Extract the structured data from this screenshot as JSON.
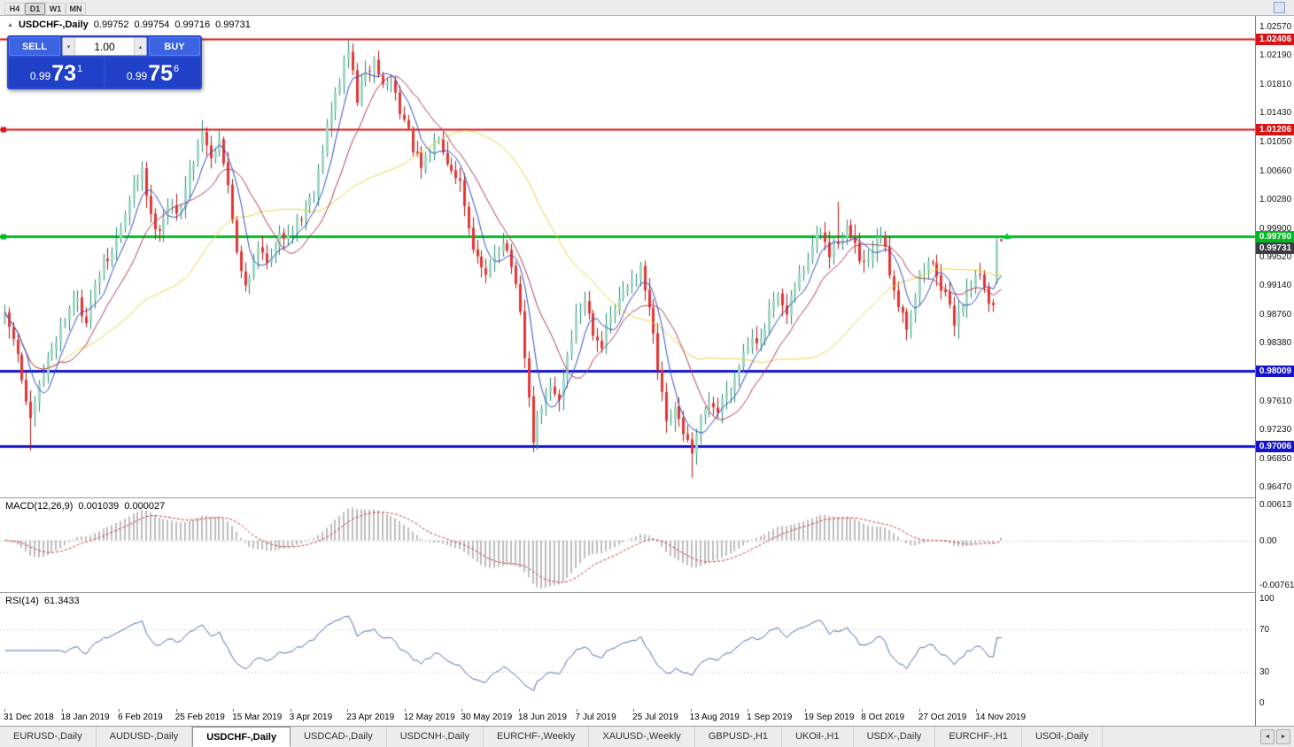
{
  "window": {
    "timeframes": [
      "H4",
      "D1",
      "W1",
      "MN"
    ],
    "active_timeframe": "D1"
  },
  "icons": {
    "collapse": "▲",
    "volume_down": "▾",
    "volume_up": "▴",
    "tab_scroll_left": "◄",
    "tab_scroll_right": "►"
  },
  "chart": {
    "symbol_title": "USDCHF-,Daily",
    "ohlc": {
      "open": "0.99752",
      "high": "0.99754",
      "low": "0.99716",
      "close": "0.99731"
    }
  },
  "trade_panel": {
    "sell_label": "SELL",
    "buy_label": "BUY",
    "volume": "1.00",
    "sell_price": {
      "small": "0.99",
      "big": "73",
      "sup": "1"
    },
    "buy_price": {
      "small": "0.99",
      "big": "75",
      "sup": "6"
    }
  },
  "price_axis": {
    "ticks": [
      "1.02570",
      "1.02190",
      "1.01810",
      "1.01430",
      "1.01050",
      "1.00660",
      "1.00280",
      "0.99900",
      "0.99520",
      "0.99140",
      "0.98760",
      "0.98380",
      "0.98000",
      "0.97610",
      "0.97230",
      "0.96850",
      "0.96470"
    ],
    "levels": [
      {
        "label": "1.02406",
        "value": 1.02406,
        "color": "#d61414",
        "kind": "resistance-line",
        "width": 2
      },
      {
        "label": "1.01206",
        "value": 1.01206,
        "color": "#d61414",
        "kind": "resistance-line",
        "width": 2,
        "handle": true
      },
      {
        "label": "0.99790",
        "value": 0.9979,
        "color": "#00b822",
        "kind": "alert-line",
        "width": 3,
        "handle": true
      },
      {
        "label": "0.99731",
        "value": 0.99731,
        "color": "#3c3c48",
        "kind": "last-price",
        "offset": 8
      },
      {
        "label": "0.98009",
        "value": 0.98009,
        "color": "#1414cc",
        "kind": "support-line",
        "width": 3
      },
      {
        "label": "0.97006",
        "value": 0.97006,
        "color": "#1414cc",
        "kind": "support-line",
        "width": 3
      }
    ]
  },
  "macd_panel": {
    "name": "MACD(12,26,9)",
    "main_value": "0.001039",
    "signal_value": "0.000027",
    "axis_ticks": [
      "0.00613",
      "0.00",
      "-0.00761"
    ],
    "range": {
      "max": 0.00613,
      "min": -0.00761
    }
  },
  "rsi_panel": {
    "name": "RSI(14)",
    "value": "61.3433",
    "axis_ticks": [
      "100",
      "70",
      "30",
      "0"
    ],
    "levels": [
      70,
      30
    ]
  },
  "x_axis": {
    "dates": [
      "31 Dec 2018",
      "18 Jan 2019",
      "6 Feb 2019",
      "25 Feb 2019",
      "15 Mar 2019",
      "3 Apr 2019",
      "23 Apr 2019",
      "12 May 2019",
      "30 May 2019",
      "18 Jun 2019",
      "7 Jul 2019",
      "25 Jul 2019",
      "13 Aug 2019",
      "1 Sep 2019",
      "19 Sep 2019",
      "8 Oct 2019",
      "27 Oct 2019",
      "14 Nov 2019"
    ]
  },
  "tabs": {
    "items": [
      "EURUSD-,Daily",
      "AUDUSD-,Daily",
      "USDCHF-,Daily",
      "USDCAD-,Daily",
      "USDCNH-,Daily",
      "EURCHF-,Weekly",
      "XAUUSD-,Weekly",
      "GBPUSD-,H1",
      "UKOil-,H1",
      "USDX-,Daily",
      "EURCHF-,H1",
      "USOil-,Daily"
    ],
    "active_index": 2
  },
  "chart_data": {
    "type": "candlestick",
    "symbol": "USDCHF",
    "timeframe": "Daily",
    "y_range": {
      "max": 1.0264,
      "min": 0.964
    },
    "num_candles": 233,
    "last_bar": {
      "open": 0.99752,
      "high": 0.99754,
      "low": 0.99716,
      "close": 0.99731
    },
    "horizontal_levels": [
      1.02406,
      1.01206,
      0.9979,
      0.98009,
      0.97006
    ],
    "marker_price": 0.9979,
    "indicators": {
      "macd": [
        12,
        26,
        9
      ],
      "rsi": 14
    },
    "moving_averages": [
      {
        "period": 40,
        "color": "#e8d23e"
      },
      {
        "period": 14,
        "color": "#b23a52"
      },
      {
        "period": 6,
        "color": "#2f4cc4"
      }
    ],
    "colors": {
      "bull_fill": "#9fd6c3",
      "bull_border": "#1f8a70",
      "bear_fill": "#e33434",
      "bear_border": "#b51616",
      "macd_bar": "#bdbdbd",
      "macd_signal": "#cc3333",
      "rsi_line": "#4a6ea8",
      "marker": "#00c832",
      "panel_blue": "#2a4ad0"
    },
    "anchors": [
      [
        0,
        0.987
      ],
      [
        2,
        0.9845
      ],
      [
        4,
        0.979
      ],
      [
        6,
        0.973
      ],
      [
        8,
        0.9778
      ],
      [
        11,
        0.9832
      ],
      [
        13,
        0.9858
      ],
      [
        16,
        0.9898
      ],
      [
        19,
        0.9872
      ],
      [
        22,
        0.993
      ],
      [
        25,
        0.9958
      ],
      [
        27,
        0.999
      ],
      [
        30,
        1.0042
      ],
      [
        32,
        1.0072
      ],
      [
        34,
        1.0002
      ],
      [
        36,
        0.9992
      ],
      [
        38,
        1.0022
      ],
      [
        40,
        1.0006
      ],
      [
        43,
        1.0062
      ],
      [
        46,
        1.0122
      ],
      [
        48,
        1.0082
      ],
      [
        50,
        1.0114
      ],
      [
        52,
        1.0042
      ],
      [
        54,
        0.9962
      ],
      [
        56,
        0.9916
      ],
      [
        59,
        0.9962
      ],
      [
        62,
        0.9948
      ],
      [
        64,
        0.9976
      ],
      [
        66,
        0.9986
      ],
      [
        69,
        1.0006
      ],
      [
        72,
        1.0042
      ],
      [
        75,
        1.0122
      ],
      [
        78,
        1.0186
      ],
      [
        80,
        1.0226
      ],
      [
        82,
        1.0162
      ],
      [
        84,
        1.0192
      ],
      [
        86,
        1.0212
      ],
      [
        88,
        1.0178
      ],
      [
        90,
        1.0186
      ],
      [
        93,
        1.0132
      ],
      [
        95,
        1.0096
      ],
      [
        97,
        1.0066
      ],
      [
        99,
        1.0092
      ],
      [
        101,
        1.0116
      ],
      [
        103,
        1.0082
      ],
      [
        106,
        1.0052
      ],
      [
        108,
        0.9992
      ],
      [
        110,
        0.9946
      ],
      [
        112,
        0.9922
      ],
      [
        114,
        0.9956
      ],
      [
        116,
        0.9976
      ],
      [
        118,
        0.9942
      ],
      [
        120,
        0.9872
      ],
      [
        122,
        0.9762
      ],
      [
        123,
        0.9712
      ],
      [
        125,
        0.9756
      ],
      [
        127,
        0.9776
      ],
      [
        129,
        0.9762
      ],
      [
        131,
        0.9822
      ],
      [
        133,
        0.9872
      ],
      [
        135,
        0.9896
      ],
      [
        137,
        0.9856
      ],
      [
        139,
        0.9836
      ],
      [
        141,
        0.9872
      ],
      [
        143,
        0.9892
      ],
      [
        146,
        0.9926
      ],
      [
        148,
        0.9932
      ],
      [
        150,
        0.9882
      ],
      [
        152,
        0.9802
      ],
      [
        154,
        0.9726
      ],
      [
        156,
        0.9746
      ],
      [
        158,
        0.9722
      ],
      [
        160,
        0.9686
      ],
      [
        162,
        0.9732
      ],
      [
        164,
        0.9762
      ],
      [
        166,
        0.9746
      ],
      [
        168,
        0.9776
      ],
      [
        170,
        0.9792
      ],
      [
        172,
        0.9826
      ],
      [
        174,
        0.9852
      ],
      [
        176,
        0.9836
      ],
      [
        178,
        0.9876
      ],
      [
        180,
        0.9896
      ],
      [
        182,
        0.9872
      ],
      [
        184,
        0.9912
      ],
      [
        186,
        0.9936
      ],
      [
        188,
        0.9966
      ],
      [
        190,
        0.9986
      ],
      [
        192,
        0.9952
      ],
      [
        194,
        0.9976
      ],
      [
        196,
        0.9992
      ],
      [
        198,
        0.9962
      ],
      [
        200,
        0.9936
      ],
      [
        202,
        0.9956
      ],
      [
        204,
        0.9982
      ],
      [
        206,
        0.9932
      ],
      [
        208,
        0.9892
      ],
      [
        210,
        0.9862
      ],
      [
        212,
        0.9902
      ],
      [
        213,
        0.9926
      ],
      [
        215,
        0.9946
      ],
      [
        217,
        0.9932
      ],
      [
        219,
        0.9896
      ],
      [
        221,
        0.9866
      ],
      [
        223,
        0.9892
      ],
      [
        225,
        0.9916
      ],
      [
        226,
        0.9932
      ],
      [
        228,
        0.9912
      ],
      [
        229,
        0.9886
      ],
      [
        230,
        0.9892
      ],
      [
        231,
        0.992
      ],
      [
        232,
        0.9973
      ]
    ],
    "overrides": {
      "6": {
        "l": 0.9695
      },
      "80": {
        "h": 1.0238
      },
      "123": {
        "l": 0.9693
      },
      "160": {
        "l": 0.9659
      },
      "194": {
        "h": 1.0025
      },
      "231": {
        "o": 0.9921,
        "c": 0.9972,
        "h": 0.9976,
        "l": 0.9916
      },
      "232": {
        "o": 0.99752,
        "h": 0.99754,
        "l": 0.99716,
        "c": 0.99731
      }
    }
  }
}
